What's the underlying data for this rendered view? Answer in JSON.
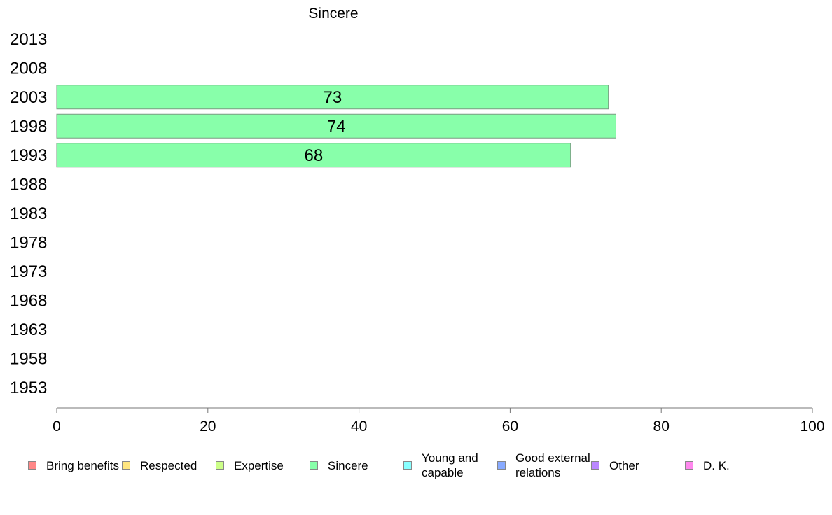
{
  "chart_data": {
    "type": "bar",
    "orientation": "horizontal",
    "title": "Sincere",
    "xlabel": "",
    "ylabel": "",
    "xlim": [
      0,
      100
    ],
    "x_ticks": [
      "0",
      "20",
      "40",
      "60",
      "80",
      "100"
    ],
    "categories": [
      "2013",
      "2008",
      "2003",
      "1998",
      "1993",
      "1988",
      "1983",
      "1978",
      "1973",
      "1968",
      "1963",
      "1958",
      "1953"
    ],
    "series": [
      {
        "name": "Sincere",
        "color": "#88ffaa",
        "values": [
          null,
          null,
          73,
          74,
          68,
          null,
          null,
          null,
          null,
          null,
          null,
          null,
          null
        ],
        "labels": [
          "",
          "",
          "73",
          "74",
          "68",
          "",
          "",
          "",
          "",
          "",
          "",
          "",
          ""
        ]
      }
    ],
    "grid": false,
    "legend_position": "bottom",
    "legend": [
      {
        "label": "Bring benefits",
        "color": "#ff8888"
      },
      {
        "label": "Respected",
        "color": "#ffe680"
      },
      {
        "label": "Expertise",
        "color": "#ccff88"
      },
      {
        "label": "Sincere",
        "color": "#88ffaa"
      },
      {
        "label": "Young and capable",
        "color": "#88ffff"
      },
      {
        "label": "Good external relations",
        "color": "#88aaff"
      },
      {
        "label": "Other",
        "color": "#bb88ff"
      },
      {
        "label": "D. K.",
        "color": "#ff88ee"
      }
    ]
  }
}
